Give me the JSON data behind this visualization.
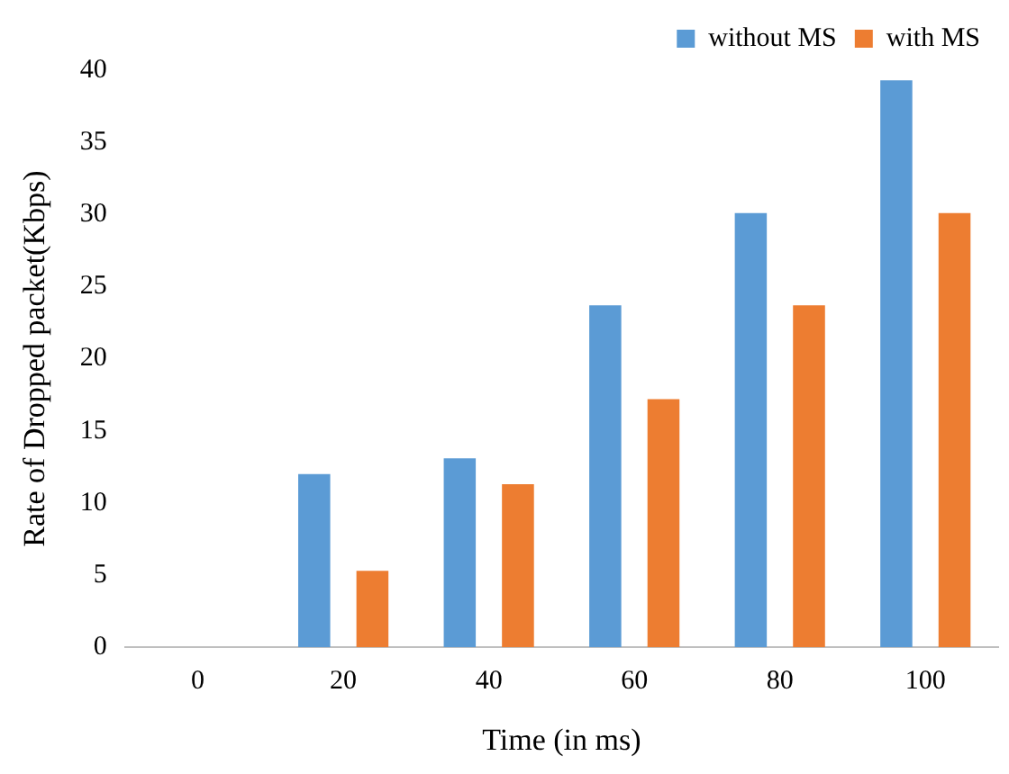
{
  "chart_data": {
    "type": "bar",
    "xlabel": "Time (in ms)",
    "ylabel": "Rate of Dropped packet(Kbps)",
    "categories": [
      "0",
      "20",
      "40",
      "60",
      "80",
      "100"
    ],
    "series": [
      {
        "name": "without MS",
        "color": "#5b9bd5",
        "values": [
          0,
          12,
          13.1,
          23.7,
          30.1,
          39.3
        ]
      },
      {
        "name": "with MS",
        "color": "#ed7d31",
        "values": [
          0,
          5.3,
          11.3,
          17.2,
          23.7,
          30.1
        ]
      }
    ],
    "ylim": [
      0,
      40
    ],
    "yticks": [
      0,
      5,
      10,
      15,
      20,
      25,
      30,
      35,
      40
    ],
    "grid": false,
    "legend": "top right"
  }
}
